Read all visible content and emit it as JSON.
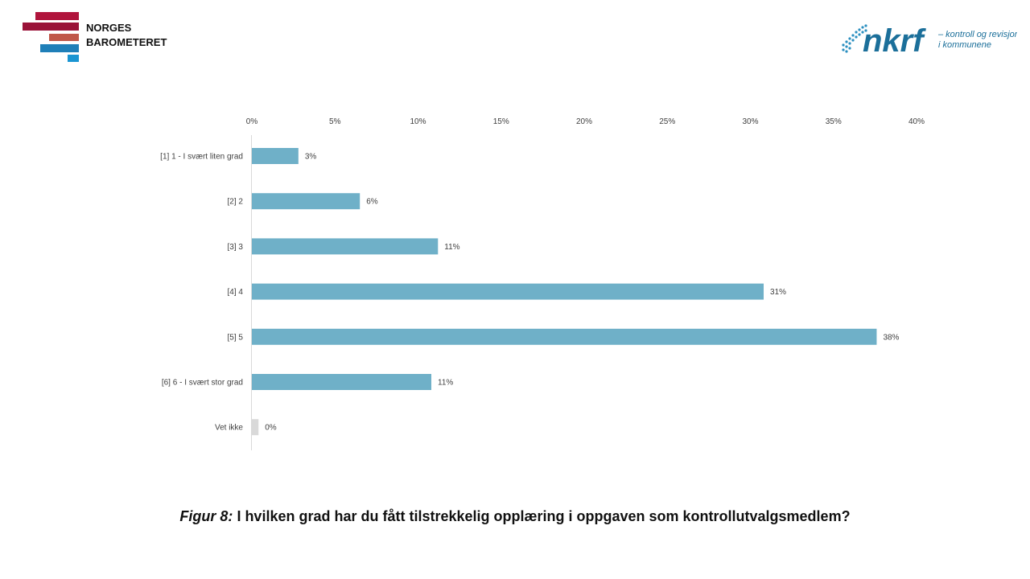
{
  "branding": {
    "left_logo_line1": "NORGES",
    "left_logo_line2": "BAROMETERET",
    "right_logo_wordmark": "nkrf",
    "right_logo_tagline_line1": "– kontroll og revisjon",
    "right_logo_tagline_line2": "i kommunene"
  },
  "caption": {
    "label": "Figur 8:",
    "text": "I hvilken grad har du fått tilstrekkelig opplæring i oppgaven som kontrollutvalgsmedlem?"
  },
  "chart_data": {
    "type": "bar",
    "orientation": "horizontal",
    "categories": [
      "[1] 1 - I svært liten grad",
      "[2] 2",
      "[3] 3",
      "[4] 4",
      "[5] 5",
      "[6] 6 - I svært stor grad",
      "Vet ikke"
    ],
    "values": [
      2.8,
      6.5,
      11.2,
      30.8,
      37.6,
      10.8,
      0.4
    ],
    "data_labels": [
      "3%",
      "6%",
      "11%",
      "31%",
      "38%",
      "11%",
      "0%"
    ],
    "bar_colors": [
      "#6fb0c8",
      "#6fb0c8",
      "#6fb0c8",
      "#6fb0c8",
      "#6fb0c8",
      "#6fb0c8",
      "#d9d9d9"
    ],
    "xlim": [
      0,
      40
    ],
    "x_ticks": [
      0,
      5,
      10,
      15,
      20,
      25,
      30,
      35,
      40
    ],
    "x_tick_labels": [
      "0%",
      "5%",
      "10%",
      "15%",
      "20%",
      "25%",
      "30%",
      "35%",
      "40%"
    ],
    "x_axis_position": "top",
    "grid": false,
    "legend": "none"
  }
}
